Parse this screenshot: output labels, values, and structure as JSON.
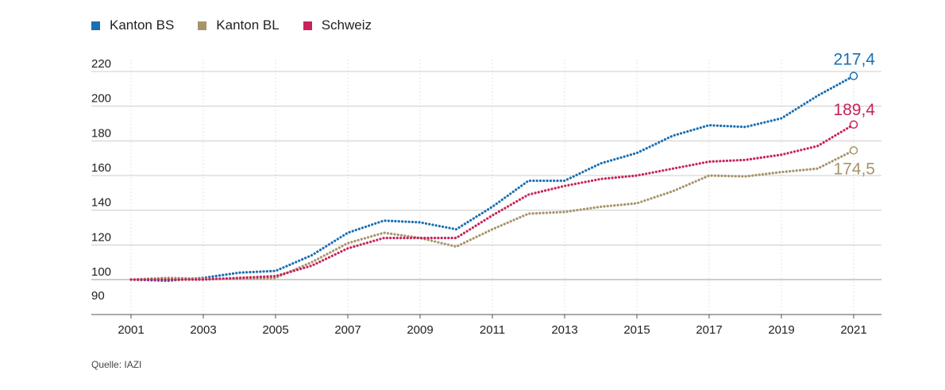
{
  "chart_data": {
    "type": "line",
    "x": [
      2001,
      2002,
      2003,
      2004,
      2005,
      2006,
      2007,
      2008,
      2009,
      2010,
      2011,
      2012,
      2013,
      2014,
      2015,
      2016,
      2017,
      2018,
      2019,
      2020,
      2021
    ],
    "series": [
      {
        "name": "Kanton BS",
        "color": "#1a6fb3",
        "values": [
          100,
          99.5,
          101,
          104,
          105,
          114,
          127,
          134,
          133,
          129,
          142,
          157,
          157,
          167,
          173,
          183,
          189,
          188,
          193,
          206,
          217.4
        ],
        "end_label": "217,4"
      },
      {
        "name": "Kanton BL",
        "color": "#a8946a",
        "values": [
          100,
          101,
          100.5,
          100.5,
          101,
          110,
          121,
          127,
          124,
          119,
          129,
          138,
          139,
          142,
          144,
          151,
          160,
          159.5,
          162,
          164,
          174.5
        ],
        "end_label": "174,5"
      },
      {
        "name": "Schweiz",
        "color": "#c7235c",
        "values": [
          100,
          100,
          100,
          101,
          102,
          108,
          118,
          124,
          124,
          124,
          137,
          149,
          154,
          158,
          160,
          164,
          168,
          169,
          172,
          177,
          189.4
        ],
        "end_label": "189,4"
      }
    ],
    "yticks": [
      90,
      100,
      120,
      140,
      160,
      180,
      200,
      220
    ],
    "xticks": [
      2001,
      2003,
      2005,
      2007,
      2009,
      2011,
      2013,
      2015,
      2017,
      2019,
      2021
    ],
    "ylim": [
      90,
      222
    ],
    "xlim": [
      2001,
      2021
    ],
    "legend_position": "top-left",
    "grid": true
  },
  "legend": [
    {
      "label": "Kanton BS",
      "color": "#1a6fb3"
    },
    {
      "label": "Kanton BL",
      "color": "#a8946a"
    },
    {
      "label": "Schweiz",
      "color": "#c7235c"
    }
  ],
  "source": "Quelle: IAZI"
}
